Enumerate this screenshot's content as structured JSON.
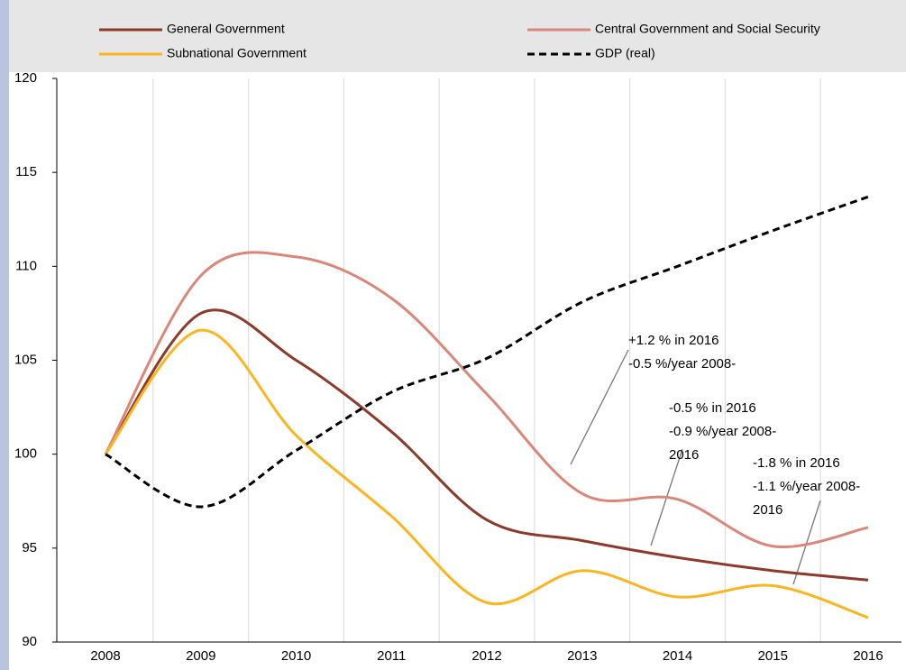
{
  "chart_data": {
    "type": "line",
    "categories": [
      "2008",
      "2009",
      "2010",
      "2011",
      "2012",
      "2013",
      "2014",
      "2015",
      "2016"
    ],
    "series": [
      {
        "name": "General Government",
        "color": "#8b3a2b",
        "dash": false,
        "values": [
          100,
          107.5,
          105,
          101.2,
          96.5,
          95.4,
          94.5,
          93.8,
          93.3
        ]
      },
      {
        "name": "Central Government and Social Security",
        "color": "#d9877a",
        "dash": false,
        "values": [
          100,
          109.5,
          110.5,
          108.3,
          103.2,
          97.9,
          97.6,
          95.1,
          96.1
        ]
      },
      {
        "name": "Subnational Government",
        "color": "#fbb520",
        "dash": false,
        "values": [
          100,
          106.6,
          101,
          96.7,
          92.1,
          93.8,
          92.4,
          93.0,
          91.3
        ]
      },
      {
        "name": "GDP (real)",
        "color": "#000000",
        "dash": true,
        "values": [
          100,
          97.2,
          100.2,
          103.3,
          105.1,
          108.1,
          110.0,
          111.9,
          113.7
        ]
      }
    ],
    "ylim": [
      90,
      120
    ],
    "yticks": [
      90,
      95,
      100,
      105,
      110,
      115,
      120
    ],
    "annotations": [
      {
        "lines": [
          "+1.2 % in 2016",
          "-0.5 %/year 2008-"
        ]
      },
      {
        "lines": [
          "-0.5 % in 2016",
          "-0.9 %/year 2008-",
          "2016"
        ]
      },
      {
        "lines": [
          "-1.8 % in 2016",
          "-1.1 %/year 2008-",
          "2016"
        ]
      }
    ]
  }
}
